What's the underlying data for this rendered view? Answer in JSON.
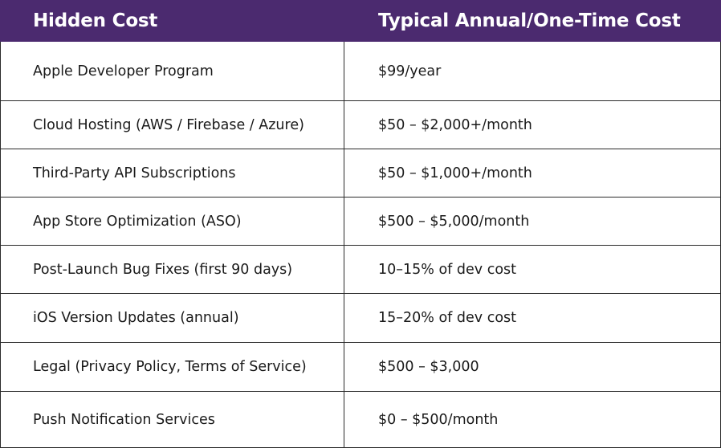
{
  "table": {
    "headers": [
      "Hidden Cost",
      "Typical Annual/One-Time Cost"
    ],
    "rows": [
      [
        "Apple Developer Program",
        "$99/year"
      ],
      [
        "Cloud Hosting (AWS / Firebase / Azure)",
        "$50 – $2,000+/month"
      ],
      [
        "Third-Party API Subscriptions",
        "$50 – $1,000+/month"
      ],
      [
        "App Store Optimization (ASO)",
        "$500 – $5,000/month"
      ],
      [
        "Post-Launch Bug Fixes (first 90 days)",
        "10–15% of dev cost"
      ],
      [
        "iOS Version Updates (annual)",
        "15–20% of dev cost"
      ],
      [
        "Legal (Privacy Policy, Terms of Service)",
        "$500 – $3,000"
      ],
      [
        "Push Notification Services",
        "$0 – $500/month"
      ]
    ]
  },
  "colors": {
    "header_bg": "#4b2a6f",
    "header_text": "#ffffff",
    "body_text": "#1a1a1a",
    "grid_line": "#2b2b2b"
  }
}
